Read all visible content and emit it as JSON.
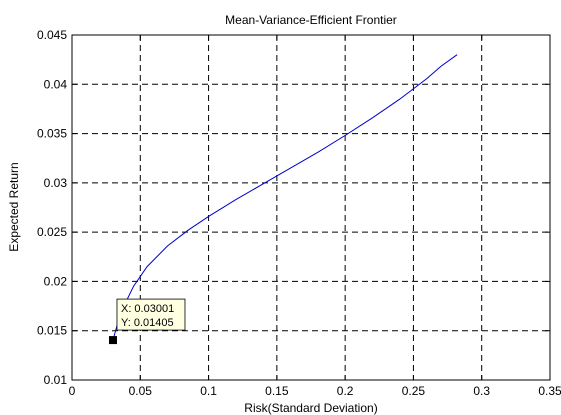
{
  "chart_data": {
    "type": "line",
    "title": "Mean-Variance-Efficient Frontier",
    "xlabel": "Risk(Standard Deviation)",
    "ylabel": "Expected Return",
    "xlim": [
      0,
      0.35
    ],
    "ylim": [
      0.01,
      0.045
    ],
    "xticks": [
      "0",
      "0.05",
      "0.1",
      "0.15",
      "0.2",
      "0.25",
      "0.3",
      "0.35"
    ],
    "yticks": [
      "0.01",
      "0.015",
      "0.02",
      "0.025",
      "0.03",
      "0.035",
      "0.04",
      "0.045"
    ],
    "grid": true,
    "series": [
      {
        "color": "#0000cc",
        "x": [
          0.03001,
          0.0335,
          0.038,
          0.045,
          0.055,
          0.07,
          0.085,
          0.1,
          0.12,
          0.14,
          0.16,
          0.18,
          0.2,
          0.22,
          0.24,
          0.26,
          0.27,
          0.282
        ],
        "y": [
          0.01405,
          0.0158,
          0.0175,
          0.0195,
          0.0215,
          0.0236,
          0.0252,
          0.0266,
          0.0283,
          0.0299,
          0.0315,
          0.0331,
          0.0348,
          0.0366,
          0.0385,
          0.0406,
          0.0418,
          0.043
        ]
      }
    ],
    "datatip": {
      "x_text": "X: 0.03001",
      "y_text": "Y: 0.01405",
      "x": 0.03001,
      "y": 0.01405
    }
  }
}
